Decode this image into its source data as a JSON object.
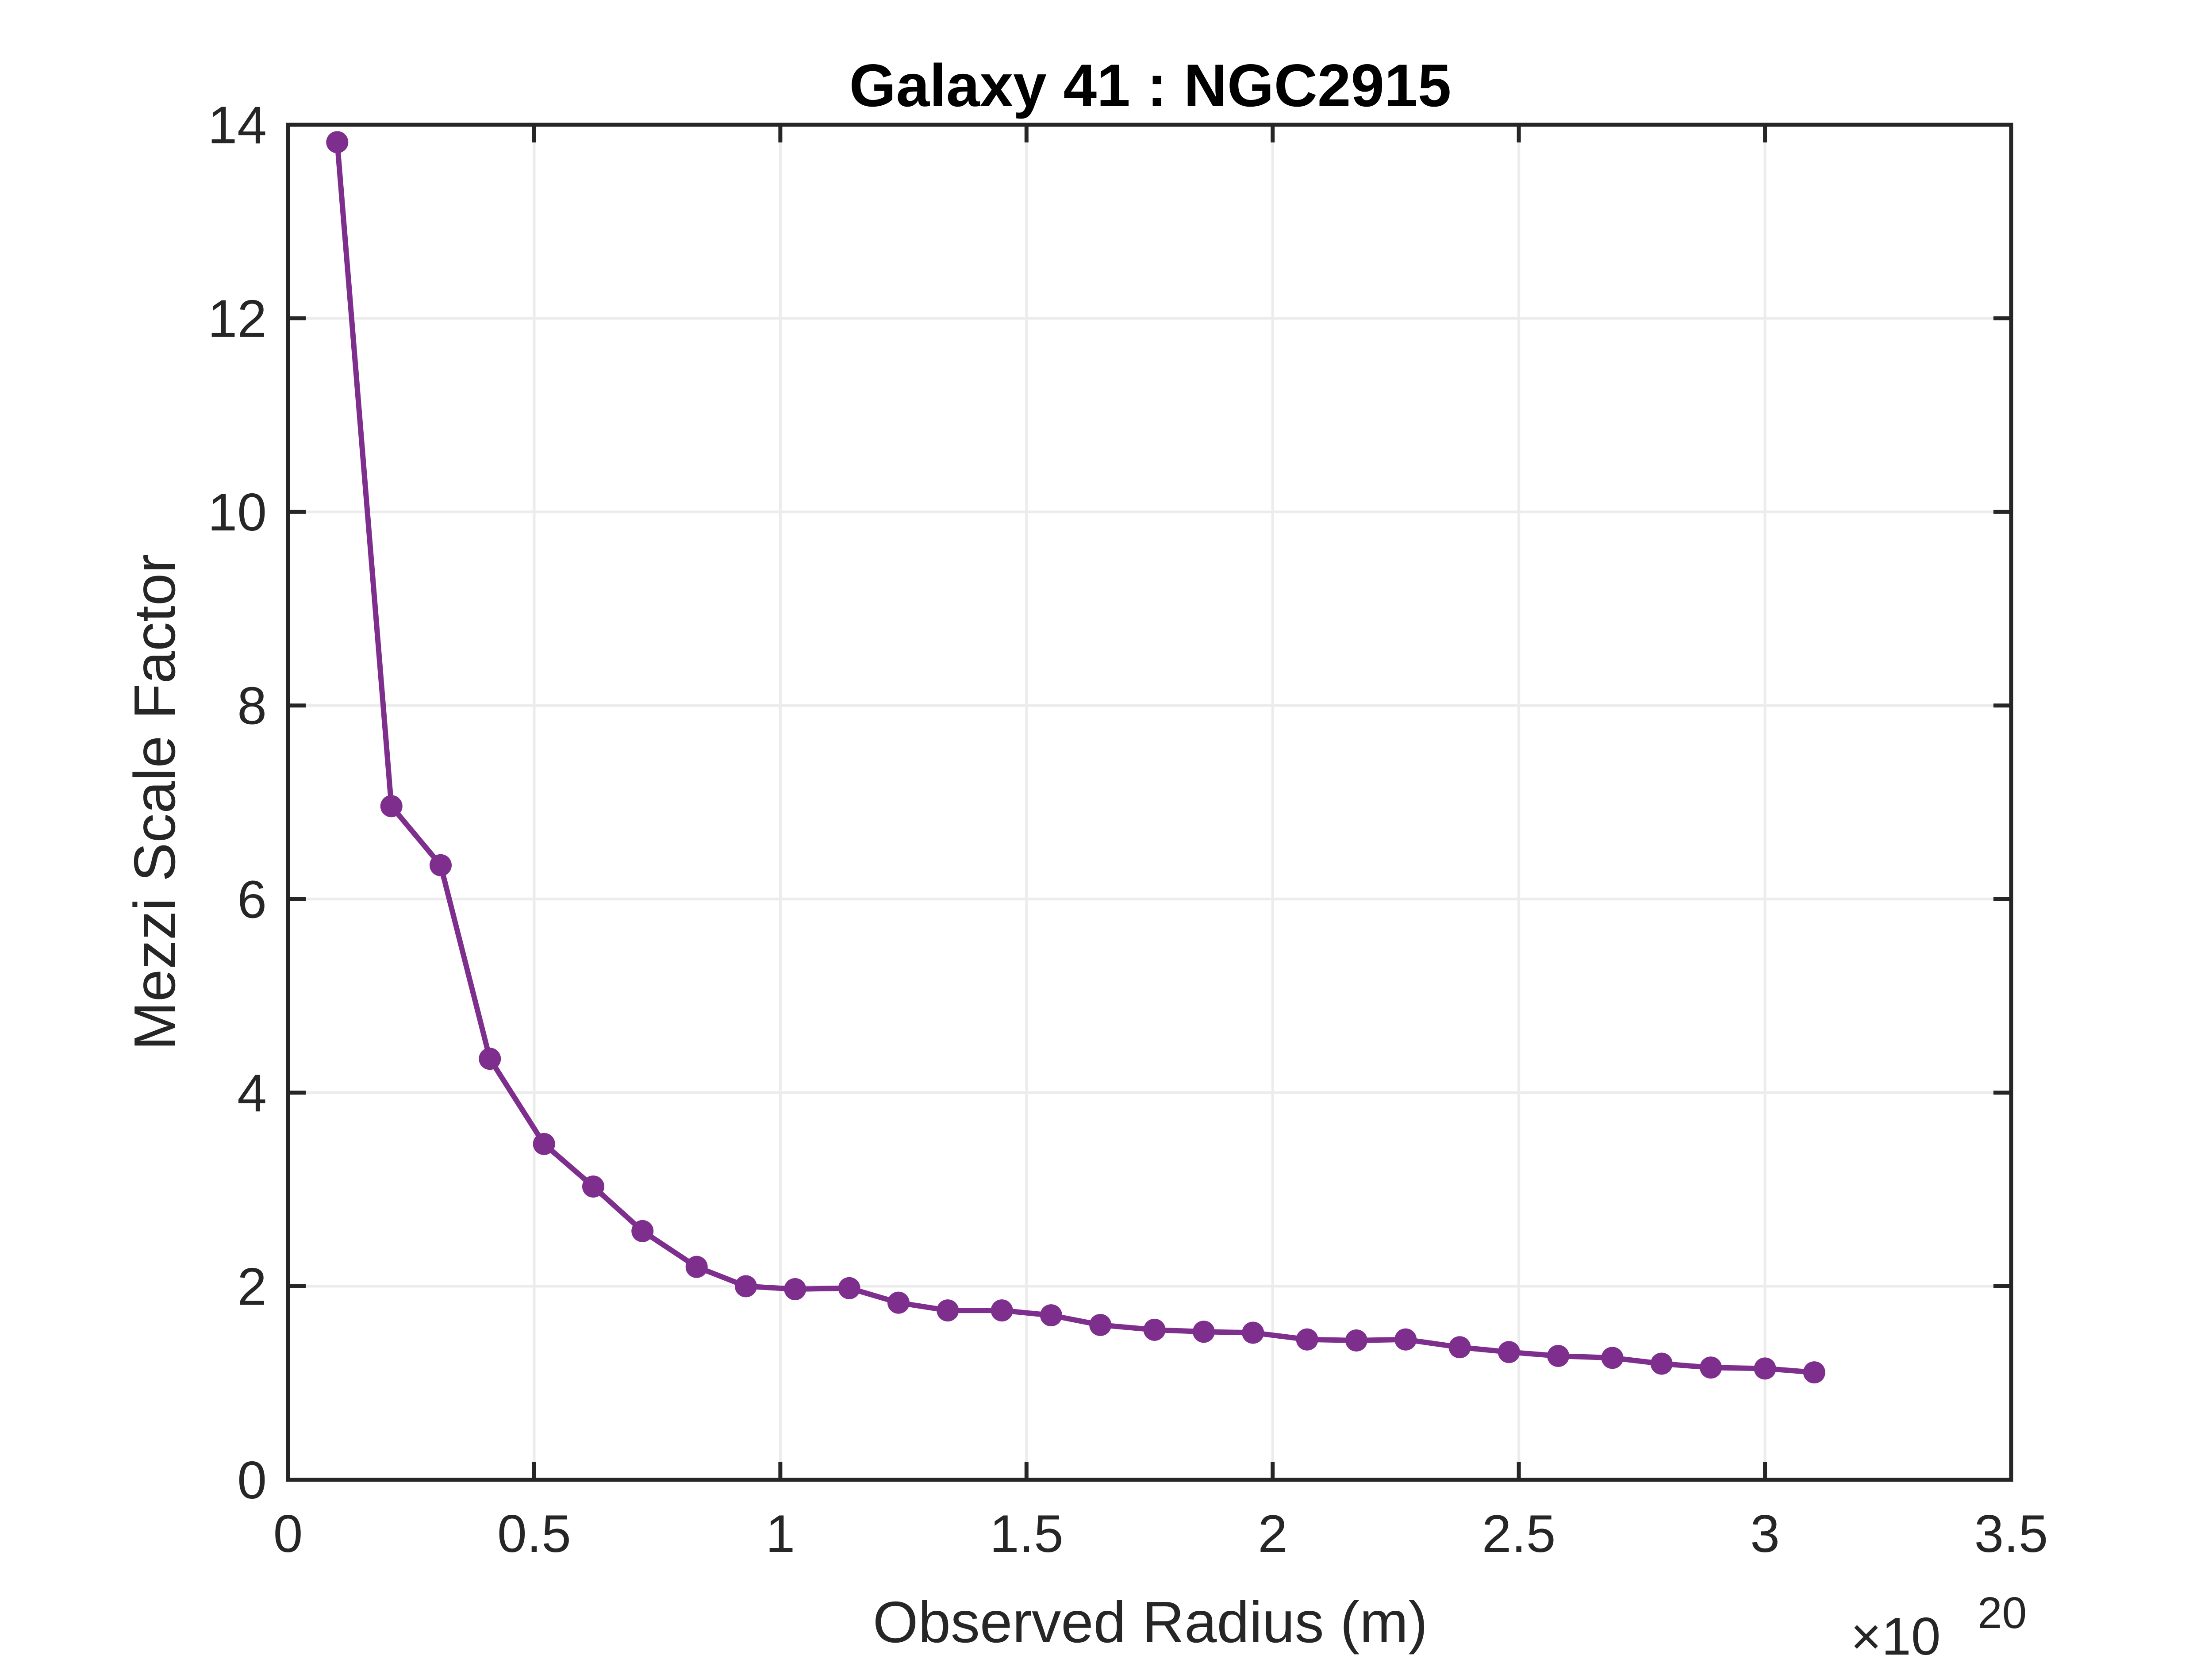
{
  "chart_data": {
    "type": "line",
    "title": "Galaxy 41 : NGC2915",
    "xlabel": "Observed Radius (m)",
    "ylabel": "Mezzi Scale Factor",
    "x_multiplier_label": "×10",
    "x_multiplier_exponent": "20",
    "xlim": [
      0,
      3.5
    ],
    "ylim": [
      0,
      14
    ],
    "x_unit_scale": "1e20",
    "x_ticks": [
      0,
      0.5,
      1,
      1.5,
      2,
      2.5,
      3,
      3.5
    ],
    "x_tick_labels": [
      "0",
      "0.5",
      "1",
      "1.5",
      "2",
      "2.5",
      "3",
      "3.5"
    ],
    "y_ticks": [
      0,
      2,
      4,
      6,
      8,
      10,
      12,
      14
    ],
    "y_tick_labels": [
      "0",
      "2",
      "4",
      "6",
      "8",
      "10",
      "12",
      "14"
    ],
    "grid": true,
    "line_color": "#7E2F8E",
    "series": [
      {
        "x": [
          0.1,
          0.21,
          0.31,
          0.41,
          0.52,
          0.62,
          0.72,
          0.83,
          0.93,
          1.03,
          1.14,
          1.24,
          1.34,
          1.45,
          1.55,
          1.65,
          1.76,
          1.86,
          1.96,
          2.07,
          2.17,
          2.27,
          2.38,
          2.48,
          2.58,
          2.69,
          2.79,
          2.89,
          3.0,
          3.1
        ],
        "y": [
          13.82,
          6.96,
          6.35,
          4.35,
          3.47,
          3.03,
          2.57,
          2.2,
          2.0,
          1.97,
          1.98,
          1.83,
          1.75,
          1.75,
          1.7,
          1.6,
          1.55,
          1.53,
          1.52,
          1.45,
          1.44,
          1.45,
          1.37,
          1.32,
          1.28,
          1.26,
          1.2,
          1.16,
          1.15,
          1.11
        ]
      }
    ]
  }
}
